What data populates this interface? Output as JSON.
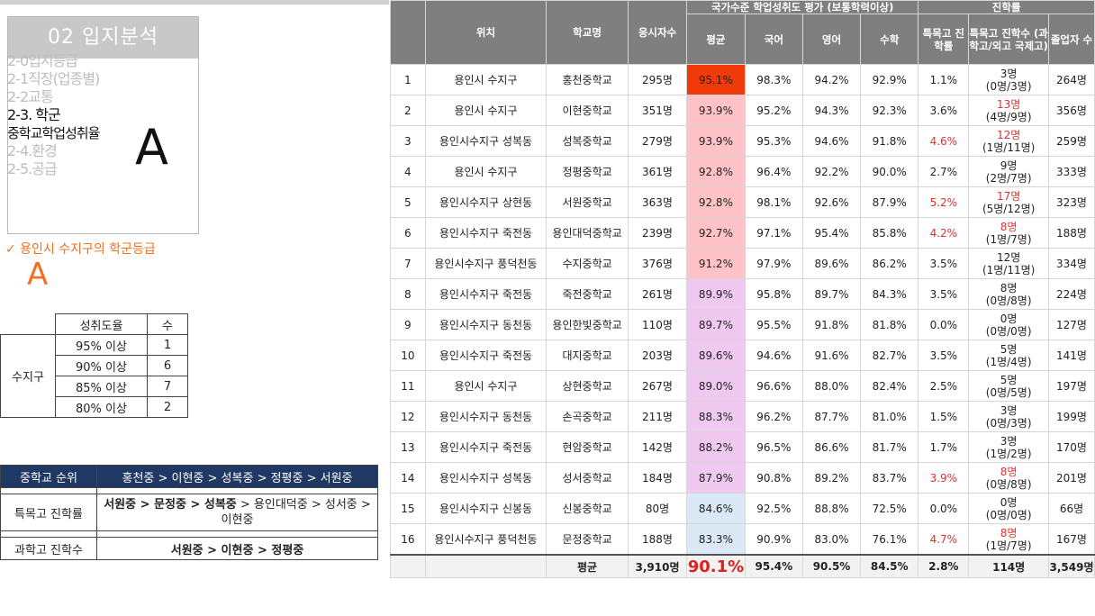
{
  "section": {
    "title": "02 입지분석",
    "menu": [
      "2-0입지등급",
      "2-1직장(업종별)",
      "2-2교통",
      "2-3. 학군",
      "중학교학업성취율",
      "2-4.환경",
      "2-5.공급"
    ],
    "grade": "A"
  },
  "check": {
    "text": "✓ 용인시 수지구의 학군등급",
    "grade": "A"
  },
  "rate_table": {
    "headers": [
      "성취도율",
      "수"
    ],
    "region": "수지구",
    "rows": [
      {
        "label": "95% 이상",
        "count": "1"
      },
      {
        "label": "90% 이상",
        "count": "6"
      },
      {
        "label": "85% 이상",
        "count": "7"
      },
      {
        "label": "80% 이상",
        "count": "2"
      }
    ]
  },
  "rank_table": {
    "head_label": "중학교 순위",
    "head_value": "홍천중 > 이현중 > 성복중 > 정평중 > 서원중",
    "row1_label": "특목고 진학률",
    "row1_value_bold": "서원중 > 문정중 > 성복중",
    "row1_value_rest": " > 용인대덕중 > 성서중 > 이현중",
    "row2_label": "과학고 진학수",
    "row2_value": "서원중 > 이현중 > 정평중"
  },
  "main_table": {
    "headers": {
      "location": "위치",
      "school": "학교명",
      "applicants": "응시자수",
      "national_group": "국가수준 학업성취도 평가 (보통학력이상)",
      "avg": "평균",
      "korean": "국어",
      "english": "영어",
      "math": "수학",
      "advance_group": "진학률",
      "special_rate": "특목고 진학률",
      "special_count": "특목고 진학수 (과학고/외고 국제고)",
      "grads": "졸업자 수"
    },
    "rows": [
      {
        "no": "1",
        "loc": "용인시 수지구",
        "school": "홍천중학교",
        "n": "295명",
        "avg": "95.1%",
        "ko": "98.3%",
        "en": "94.2%",
        "ma": "92.9%",
        "sr": "1.1%",
        "sr_red": false,
        "sc": "3명",
        "sc_red": false,
        "sc_sub": "(0명/3명)",
        "grad": "264명",
        "avg_color": "#f03a0a"
      },
      {
        "no": "2",
        "loc": "용인시 수지구",
        "school": "이현중학교",
        "n": "351명",
        "avg": "93.9%",
        "ko": "95.2%",
        "en": "94.3%",
        "ma": "92.3%",
        "sr": "3.6%",
        "sr_red": false,
        "sc": "13명",
        "sc_red": true,
        "sc_sub": "(4명/9명)",
        "grad": "356명",
        "avg_color": "#ffc2c6"
      },
      {
        "no": "3",
        "loc": "용인시수지구 성복동",
        "school": "성복중학교",
        "n": "279명",
        "avg": "93.9%",
        "ko": "95.3%",
        "en": "94.6%",
        "ma": "91.8%",
        "sr": "4.6%",
        "sr_red": true,
        "sc": "12명",
        "sc_red": true,
        "sc_sub": "(1명/11명)",
        "grad": "259명",
        "avg_color": "#ffc2c6"
      },
      {
        "no": "4",
        "loc": "용인시 수지구",
        "school": "정평중학교",
        "n": "361명",
        "avg": "92.8%",
        "ko": "96.4%",
        "en": "92.2%",
        "ma": "90.0%",
        "sr": "2.7%",
        "sr_red": false,
        "sc": "9명",
        "sc_red": false,
        "sc_sub": "(2명/7명)",
        "grad": "333명",
        "avg_color": "#ffc2c6"
      },
      {
        "no": "5",
        "loc": "용인시수지구 상현동",
        "school": "서원중학교",
        "n": "363명",
        "avg": "92.8%",
        "ko": "98.1%",
        "en": "92.6%",
        "ma": "87.9%",
        "sr": "5.2%",
        "sr_red": true,
        "sc": "17명",
        "sc_red": true,
        "sc_sub": "(5명/12명)",
        "grad": "323명",
        "avg_color": "#ffc2c6"
      },
      {
        "no": "6",
        "loc": "용인시수지구 죽전동",
        "school": "용인대덕중학교",
        "n": "239명",
        "avg": "92.7%",
        "ko": "97.1%",
        "en": "95.4%",
        "ma": "85.8%",
        "sr": "4.2%",
        "sr_red": true,
        "sc": "8명",
        "sc_red": true,
        "sc_sub": "(1명/7명)",
        "grad": "188명",
        "avg_color": "#ffc2c6"
      },
      {
        "no": "7",
        "loc": "용인시수지구 풍덕천동",
        "school": "수지중학교",
        "n": "376명",
        "avg": "91.2%",
        "ko": "97.9%",
        "en": "89.6%",
        "ma": "86.2%",
        "sr": "3.5%",
        "sr_red": false,
        "sc": "12명",
        "sc_red": false,
        "sc_sub": "(1명/11명)",
        "grad": "334명",
        "avg_color": "#ffc2c6"
      },
      {
        "no": "8",
        "loc": "용인시수지구 죽전동",
        "school": "죽전중학교",
        "n": "261명",
        "avg": "89.9%",
        "ko": "95.8%",
        "en": "89.7%",
        "ma": "84.3%",
        "sr": "3.5%",
        "sr_red": false,
        "sc": "8명",
        "sc_red": false,
        "sc_sub": "(0명/8명)",
        "grad": "224명",
        "avg_color": "#efc9ef"
      },
      {
        "no": "9",
        "loc": "용인시수지구 동천동",
        "school": "용인한빛중학교",
        "n": "110명",
        "avg": "89.7%",
        "ko": "95.5%",
        "en": "91.8%",
        "ma": "81.8%",
        "sr": "0.0%",
        "sr_red": false,
        "sc": "0명",
        "sc_red": false,
        "sc_sub": "(0명/0명)",
        "grad": "127명",
        "avg_color": "#efc9ef"
      },
      {
        "no": "10",
        "loc": "용인시수지구 죽전동",
        "school": "대지중학교",
        "n": "203명",
        "avg": "89.6%",
        "ko": "94.6%",
        "en": "91.6%",
        "ma": "82.7%",
        "sr": "3.5%",
        "sr_red": false,
        "sc": "5명",
        "sc_red": false,
        "sc_sub": "(1명/4명)",
        "grad": "141명",
        "avg_color": "#efc9ef"
      },
      {
        "no": "11",
        "loc": "용인시 수지구",
        "school": "상현중학교",
        "n": "267명",
        "avg": "89.0%",
        "ko": "96.6%",
        "en": "88.0%",
        "ma": "82.4%",
        "sr": "2.5%",
        "sr_red": false,
        "sc": "5명",
        "sc_red": false,
        "sc_sub": "(0명/5명)",
        "grad": "197명",
        "avg_color": "#efc9ef"
      },
      {
        "no": "12",
        "loc": "용인시수지구 동천동",
        "school": "손곡중학교",
        "n": "211명",
        "avg": "88.3%",
        "ko": "96.2%",
        "en": "87.7%",
        "ma": "81.0%",
        "sr": "1.5%",
        "sr_red": false,
        "sc": "3명",
        "sc_red": false,
        "sc_sub": "(0명/3명)",
        "grad": "199명",
        "avg_color": "#efc9ef"
      },
      {
        "no": "13",
        "loc": "용인시수지구 죽전동",
        "school": "현암중학교",
        "n": "142명",
        "avg": "88.2%",
        "ko": "96.5%",
        "en": "86.6%",
        "ma": "81.7%",
        "sr": "1.7%",
        "sr_red": false,
        "sc": "3명",
        "sc_red": false,
        "sc_sub": "(1명/2명)",
        "grad": "170명",
        "avg_color": "#efc9ef"
      },
      {
        "no": "14",
        "loc": "용인시수지구 성복동",
        "school": "성서중학교",
        "n": "184명",
        "avg": "87.9%",
        "ko": "90.8%",
        "en": "89.2%",
        "ma": "83.7%",
        "sr": "3.9%",
        "sr_red": true,
        "sc": "8명",
        "sc_red": true,
        "sc_sub": "(0명/8명)",
        "grad": "201명",
        "avg_color": "#efc9ef"
      },
      {
        "no": "15",
        "loc": "용인시수지구 신봉동",
        "school": "신봉중학교",
        "n": "80명",
        "avg": "84.6%",
        "ko": "92.5%",
        "en": "88.8%",
        "ma": "72.5%",
        "sr": "0.0%",
        "sr_red": false,
        "sc": "0명",
        "sc_red": false,
        "sc_sub": "(0명/0명)",
        "grad": "66명",
        "avg_color": "#dbe8f6"
      },
      {
        "no": "16",
        "loc": "용인시수지구 풍덕천동",
        "school": "문정중학교",
        "n": "188명",
        "avg": "83.3%",
        "ko": "90.9%",
        "en": "83.0%",
        "ma": "76.1%",
        "sr": "4.7%",
        "sr_red": true,
        "sc": "8명",
        "sc_red": true,
        "sc_sub": "(1명/7명)",
        "grad": "167명",
        "avg_color": "#dbe8f6"
      }
    ],
    "footer": {
      "label": "평균",
      "n": "3,910명",
      "avg": "90.1%",
      "ko": "95.4%",
      "en": "90.5%",
      "ma": "84.5%",
      "sr": "2.8%",
      "sc": "114명",
      "grad": "3,549명"
    }
  }
}
